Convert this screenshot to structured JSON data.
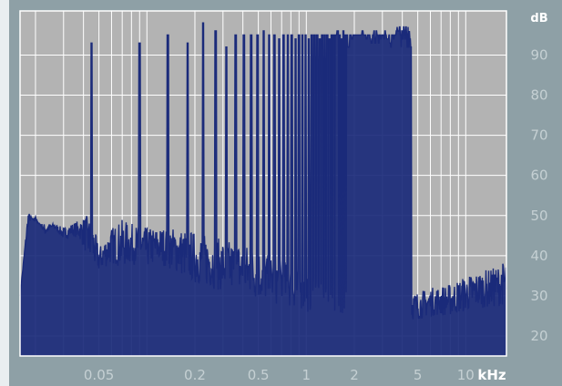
{
  "chart_data": {
    "type": "line",
    "title": "",
    "xlabel": "",
    "ylabel": "",
    "x_unit": "kHz",
    "y_unit": "dB",
    "x_scale": "log",
    "xlim_khz": [
      0.016,
      18
    ],
    "ylim_db": [
      15,
      101
    ],
    "grid": true,
    "x_ticks": [
      {
        "value": 0.05,
        "label": "0.05"
      },
      {
        "value": 0.2,
        "label": "0.2"
      },
      {
        "value": 0.5,
        "label": "0.5"
      },
      {
        "value": 1,
        "label": "1"
      },
      {
        "value": 2,
        "label": "2"
      },
      {
        "value": 5,
        "label": "5"
      },
      {
        "value": 10,
        "label": "10"
      }
    ],
    "y_ticks": [
      {
        "value": 20,
        "label": "20"
      },
      {
        "value": 30,
        "label": "30"
      },
      {
        "value": 40,
        "label": "40"
      },
      {
        "value": 50,
        "label": "50"
      },
      {
        "value": 60,
        "label": "60"
      },
      {
        "value": 70,
        "label": "70"
      },
      {
        "value": 80,
        "label": "80"
      },
      {
        "value": 90,
        "label": "90"
      }
    ],
    "series": [
      {
        "color": "#1a2a7a",
        "harmonic_peaks": {
          "fundamental_khz": 0.045,
          "peak_db": [
            93,
            93,
            95,
            93,
            98,
            96,
            92,
            95,
            95,
            95,
            95,
            96,
            95,
            95,
            94,
            95,
            95,
            95,
            94,
            95,
            95,
            95,
            94,
            95,
            95,
            95,
            94,
            95,
            95,
            95,
            94,
            95,
            95,
            95,
            96,
            95,
            94,
            96,
            95,
            95,
            92,
            95,
            94,
            95,
            95,
            95,
            95,
            95,
            95,
            96,
            95,
            95,
            94,
            95,
            95,
            94,
            93,
            95,
            96,
            93,
            96,
            95,
            93,
            95,
            94,
            95,
            95,
            94,
            96,
            95,
            94,
            94,
            95,
            93,
            92,
            95,
            95,
            94,
            95,
            95,
            96,
            97,
            96,
            96,
            97,
            95,
            92,
            96,
            94,
            97,
            96,
            94,
            97,
            95,
            92,
            97,
            92,
            96,
            94,
            92
          ]
        },
        "noise_floor": {
          "x_khz": [
            0.016,
            0.018,
            0.02,
            0.023,
            0.026,
            0.03,
            0.034,
            0.038,
            0.042,
            0.046,
            0.05,
            0.06,
            0.07,
            0.08,
            0.1,
            0.12,
            0.15,
            0.2,
            0.25,
            0.3,
            0.4,
            0.5,
            0.6,
            0.8,
            1,
            1.2,
            1.5,
            2,
            2.5,
            3,
            4,
            5,
            6,
            8,
            10,
            12,
            15,
            18
          ],
          "level_db": [
            30,
            48,
            50,
            45,
            47,
            44,
            45,
            44,
            40,
            37,
            36,
            38,
            37,
            38,
            37,
            38,
            36,
            33,
            32,
            31,
            30,
            29,
            28,
            27,
            26,
            25,
            25,
            24,
            24,
            24,
            24,
            24,
            25,
            25,
            26,
            27,
            27,
            28
          ],
          "peak_db": [
            30,
            51,
            48,
            48,
            48,
            47,
            48,
            49,
            50,
            48,
            42,
            47,
            49,
            48,
            47,
            47,
            47,
            46,
            45,
            44,
            43,
            42,
            40,
            38,
            37,
            36,
            35,
            33,
            32,
            32,
            31,
            31,
            32,
            33,
            35,
            36,
            37,
            39
          ]
        }
      }
    ]
  }
}
